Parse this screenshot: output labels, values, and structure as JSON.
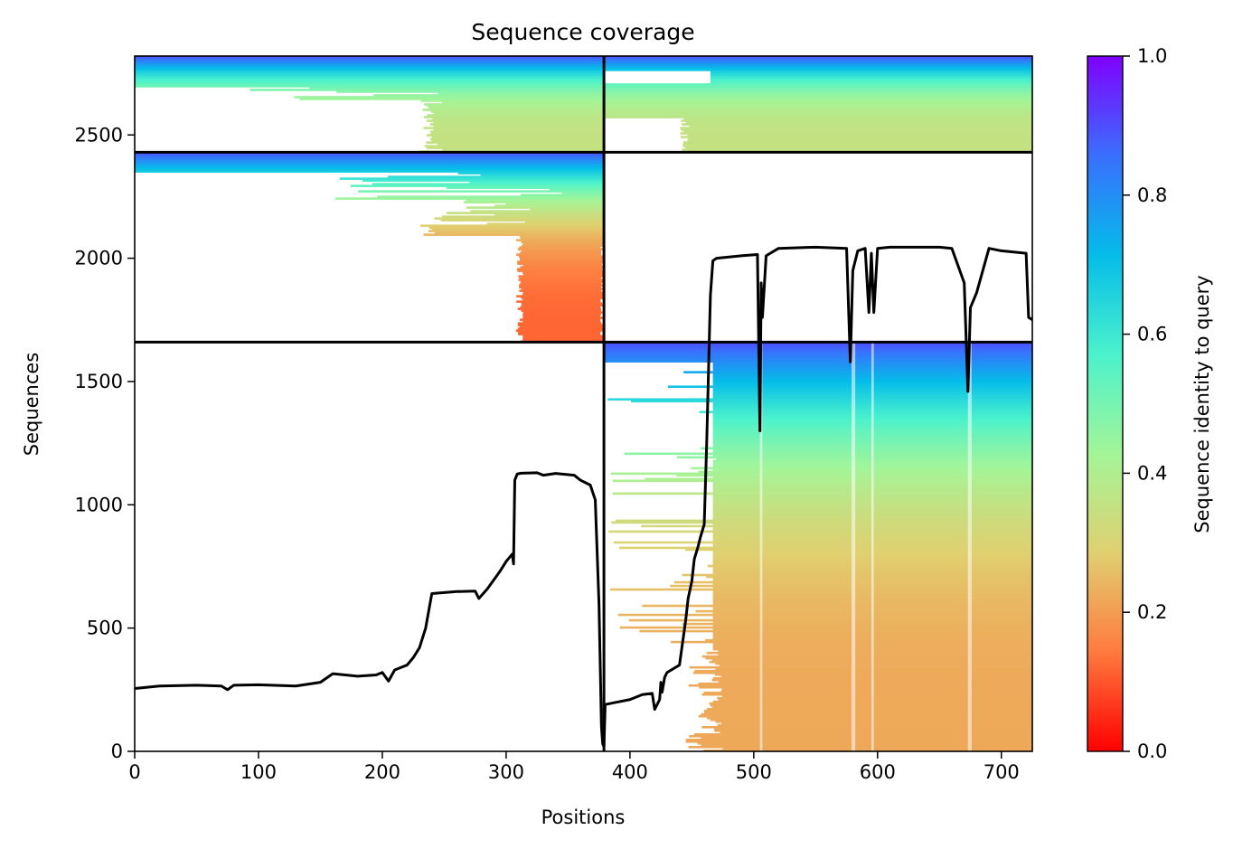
{
  "chart_data": {
    "type": "heatmap",
    "title": "Sequence coverage",
    "xlabel": "Positions",
    "ylabel": "Sequences",
    "xlim": [
      0,
      725
    ],
    "ylim": [
      0,
      2820
    ],
    "x_ticks": [
      0,
      100,
      200,
      300,
      400,
      500,
      600,
      700
    ],
    "y_ticks": [
      0,
      500,
      1000,
      1500,
      2000,
      2500
    ],
    "grid": false,
    "legend": "none",
    "colorbar": {
      "label": "Sequence identity to query",
      "colormap": "rainbow_r",
      "range": [
        0,
        1
      ],
      "ticks": [
        "0.0",
        "0.2",
        "0.4",
        "0.6",
        "0.8",
        "1.0"
      ],
      "colors": [
        "#ff0000",
        "#ff7a3e",
        "#e0d070",
        "#a3f598",
        "#4bf2cc",
        "#04bce9",
        "#3a6ffd",
        "#8000ff"
      ]
    },
    "domain_boundary_x": 379,
    "block_boundaries_y": [
      1660,
      2430
    ],
    "blocks": [
      {
        "x": [
          0,
          379
        ],
        "y": [
          2430,
          2820
        ],
        "coverage": "partial",
        "identity": [
          0.35,
          0.9
        ]
      },
      {
        "x": [
          379,
          725
        ],
        "y": [
          2430,
          2820
        ],
        "coverage": "full",
        "identity": [
          0.35,
          0.9
        ]
      },
      {
        "x": [
          0,
          379
        ],
        "y": [
          1660,
          2430
        ],
        "coverage": "c-terminal",
        "identity": [
          0.12,
          0.9
        ]
      },
      {
        "x": [
          379,
          725
        ],
        "y": [
          1660,
          2430
        ],
        "coverage": "none",
        "identity": null
      },
      {
        "x": [
          0,
          379
        ],
        "y": [
          0,
          1660
        ],
        "coverage": "none",
        "identity": null
      },
      {
        "x": [
          379,
          725
        ],
        "y": [
          0,
          1660
        ],
        "coverage": "from ~467",
        "identity": [
          0.22,
          0.9
        ]
      }
    ],
    "coverage_line": {
      "name": "coverage",
      "color": "#000000",
      "x": [
        0,
        20,
        50,
        70,
        75,
        80,
        100,
        130,
        150,
        160,
        180,
        195,
        200,
        205,
        210,
        215,
        220,
        225,
        230,
        235,
        240,
        260,
        275,
        278,
        285,
        295,
        300,
        305,
        306,
        307,
        309,
        312,
        325,
        330,
        340,
        355,
        360,
        368,
        372,
        375,
        377,
        378,
        379,
        380,
        390,
        400,
        410,
        418,
        420,
        424,
        425,
        426,
        428,
        430,
        440,
        445,
        447,
        450,
        452,
        455,
        457,
        460,
        462,
        464,
        465,
        467,
        470,
        490,
        503,
        505,
        506,
        507,
        510,
        520,
        550,
        575,
        578,
        580,
        584,
        590,
        593,
        595,
        597,
        600,
        610,
        650,
        660,
        670,
        673,
        675,
        680,
        690,
        700,
        720,
        722,
        725
      ],
      "y": [
        255,
        265,
        268,
        265,
        250,
        268,
        270,
        265,
        280,
        315,
        305,
        310,
        320,
        285,
        330,
        340,
        350,
        380,
        420,
        500,
        640,
        648,
        650,
        620,
        660,
        730,
        770,
        800,
        760,
        1100,
        1125,
        1128,
        1130,
        1120,
        1127,
        1120,
        1100,
        1080,
        1020,
        600,
        100,
        30,
        20,
        190,
        200,
        210,
        230,
        235,
        170,
        210,
        280,
        240,
        300,
        320,
        350,
        530,
        620,
        690,
        780,
        830,
        870,
        920,
        1250,
        1650,
        1850,
        1990,
        2000,
        2010,
        2015,
        1300,
        1900,
        1760,
        2010,
        2040,
        2045,
        2040,
        1580,
        1950,
        2030,
        2040,
        1780,
        2020,
        1780,
        2040,
        2045,
        2045,
        2040,
        1900,
        1460,
        1800,
        1860,
        2040,
        2030,
        2020,
        1760,
        1750
      ]
    }
  }
}
